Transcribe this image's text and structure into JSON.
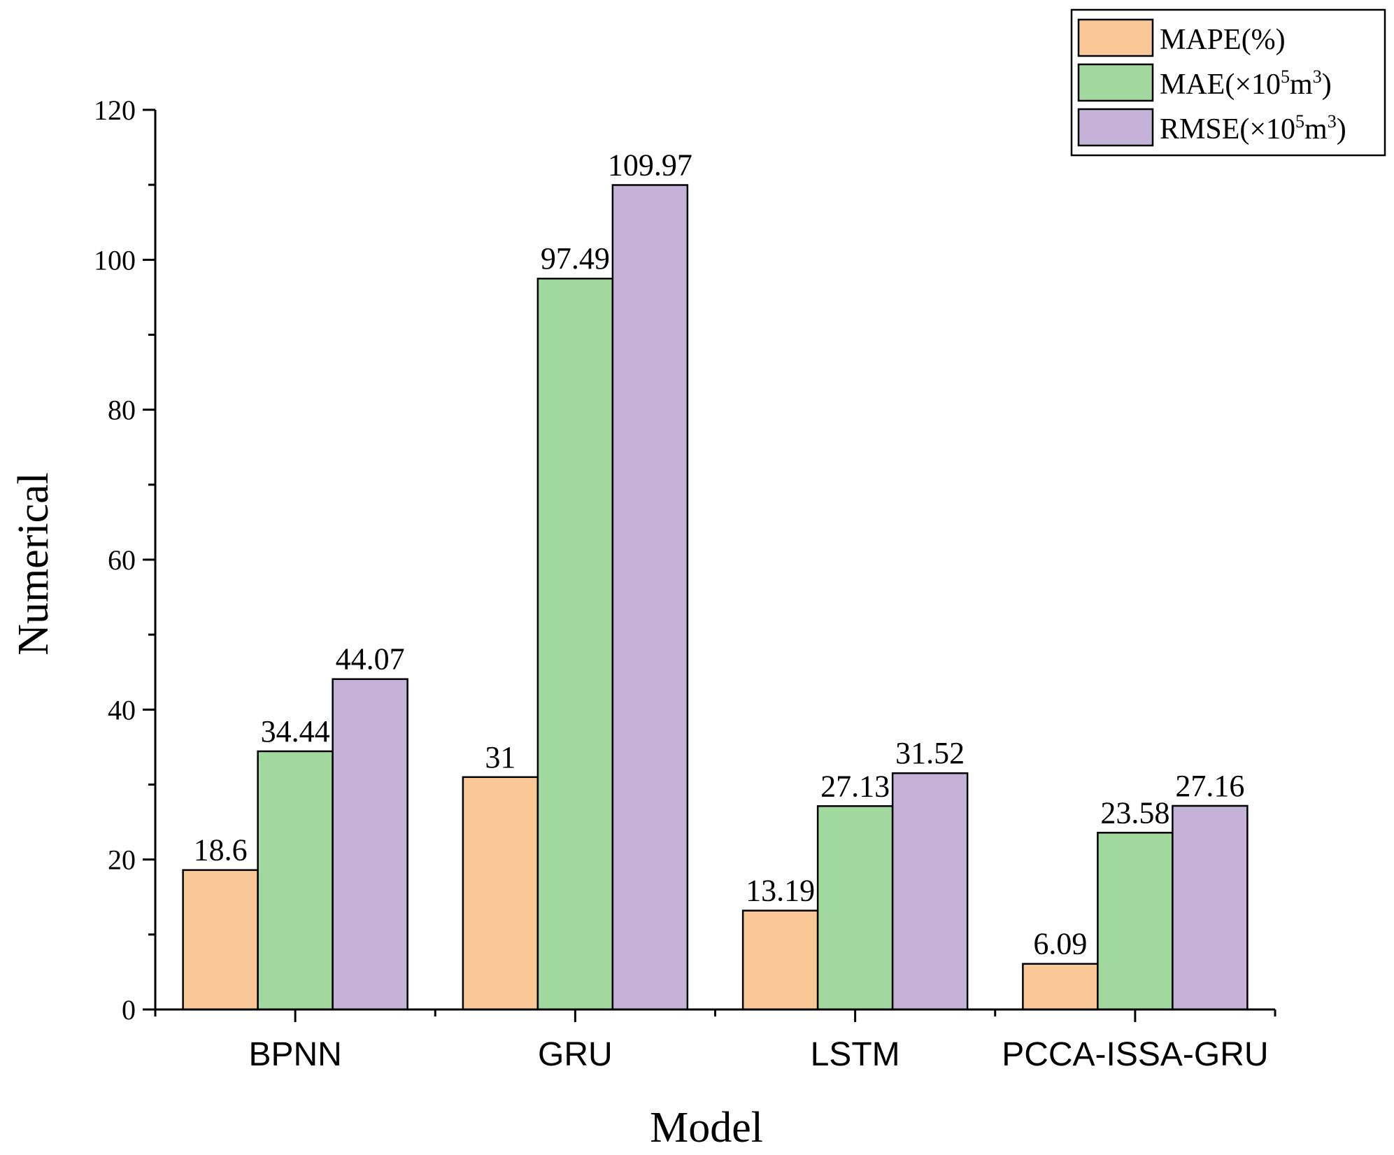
{
  "chart_data": {
    "type": "bar",
    "title": "",
    "xlabel": "Model",
    "ylabel": "Numerical",
    "categories": [
      "BPNN",
      "GRU",
      "LSTM",
      "PCCA-ISSA-GRU"
    ],
    "ylim": [
      0,
      120
    ],
    "yticks": [
      0,
      20,
      40,
      60,
      80,
      100,
      120
    ],
    "legend_position": "top-right",
    "grid": false,
    "series": [
      {
        "name": "MAPE(%)",
        "legend": {
          "text": "MAPE(%)"
        },
        "color": "#FAC896",
        "values": [
          18.6,
          31,
          13.19,
          6.09
        ],
        "labels": [
          "18.6",
          "31",
          "13.19",
          "6.09"
        ]
      },
      {
        "name": "MAE(×10⁵m³)",
        "legend": {
          "pre": "MAE(×10",
          "exp1": "5",
          "mid": "m",
          "exp2": "3",
          "post": ")"
        },
        "color": "#A0D89E",
        "values": [
          34.44,
          97.49,
          27.13,
          23.58
        ],
        "labels": [
          "34.44",
          "97.49",
          "27.13",
          "23.58"
        ]
      },
      {
        "name": "RMSE(×10⁵m³)",
        "legend": {
          "pre": "RMSE(×10",
          "exp1": "5",
          "mid": "m",
          "exp2": "3",
          "post": ")"
        },
        "color": "#C4B2D8",
        "values": [
          44.07,
          109.97,
          31.52,
          27.16
        ],
        "labels": [
          "44.07",
          "109.97",
          "31.52",
          "27.16"
        ]
      }
    ]
  }
}
